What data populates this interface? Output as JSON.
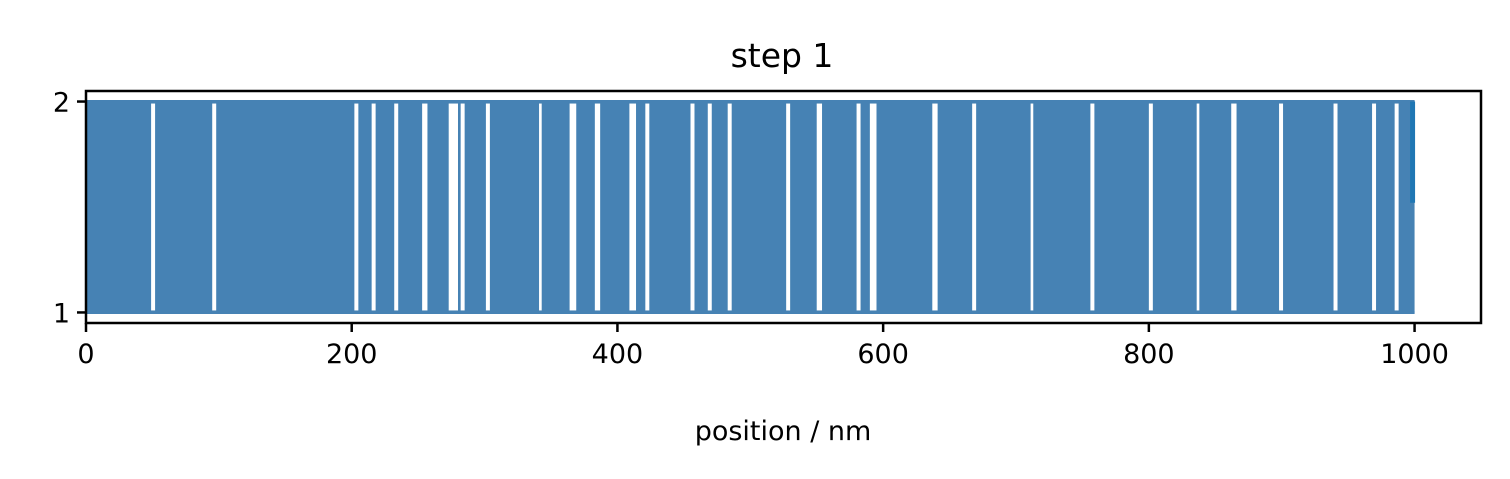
{
  "chart_data": {
    "type": "line",
    "title": "step 1",
    "xlabel": "position / nm",
    "ylabel": "",
    "xlim": [
      0,
      1050
    ],
    "ylim": [
      0.95,
      2.05
    ],
    "xticks": [
      0,
      200,
      400,
      600,
      800,
      1000
    ],
    "yticks": [
      1,
      2
    ],
    "grid": false,
    "series_color": "#4682b4",
    "last_segment_color": "#1f77b4",
    "series": [
      {
        "x": [
          0,
          1000
        ],
        "y_range": [
          1,
          2
        ],
        "pattern": "two-state telegraph signal switching rapidly between 1 and 2 across 0–1000 nm",
        "gap_intervals": [
          [
            49,
            52
          ],
          [
            95,
            98
          ],
          [
            202,
            205
          ],
          [
            215,
            218
          ],
          [
            232,
            235
          ],
          [
            253,
            257
          ],
          [
            273,
            280
          ],
          [
            282,
            285
          ],
          [
            301,
            304
          ],
          [
            341,
            343
          ],
          [
            364,
            369
          ],
          [
            383,
            387
          ],
          [
            409,
            414
          ],
          [
            421,
            424
          ],
          [
            455,
            458
          ],
          [
            468,
            471
          ],
          [
            483,
            486
          ],
          [
            527,
            530
          ],
          [
            550,
            554
          ],
          [
            580,
            583
          ],
          [
            590,
            595
          ],
          [
            637,
            641
          ],
          [
            667,
            670
          ],
          [
            711,
            713
          ],
          [
            756,
            759
          ],
          [
            800,
            803
          ],
          [
            836,
            838
          ],
          [
            862,
            866
          ],
          [
            898,
            901
          ],
          [
            939,
            942
          ],
          [
            968,
            971
          ],
          [
            985,
            988
          ]
        ]
      }
    ]
  }
}
